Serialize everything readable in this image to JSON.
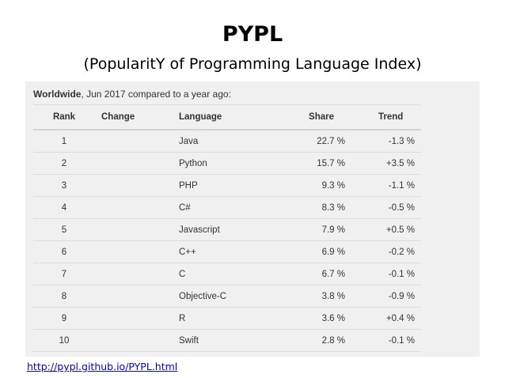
{
  "slide": {
    "title": "PYPL",
    "subtitle": "(PopularitY of Programming Language Index)",
    "source_link": "http://pypl.github.io/PYPL.html"
  },
  "ranking": {
    "caption_strong": "Worldwide",
    "caption_rest": ", Jun 2017 compared to a year ago:",
    "columns": [
      "Rank",
      "Change",
      "Language",
      "Share",
      "Trend"
    ],
    "rows": [
      {
        "rank": "1",
        "change": "",
        "language": "Java",
        "share": "22.7 %",
        "trend": "-1.3 %"
      },
      {
        "rank": "2",
        "change": "",
        "language": "Python",
        "share": "15.7 %",
        "trend": "+3.5 %"
      },
      {
        "rank": "3",
        "change": "",
        "language": "PHP",
        "share": "9.3 %",
        "trend": "-1.1 %"
      },
      {
        "rank": "4",
        "change": "",
        "language": "C#",
        "share": "8.3 %",
        "trend": "-0.5 %"
      },
      {
        "rank": "5",
        "change": "",
        "language": "Javascript",
        "share": "7.9 %",
        "trend": "+0.5 %"
      },
      {
        "rank": "6",
        "change": "",
        "language": "C++",
        "share": "6.9 %",
        "trend": "-0.2 %"
      },
      {
        "rank": "7",
        "change": "",
        "language": "C",
        "share": "6.7 %",
        "trend": "-0.1 %"
      },
      {
        "rank": "8",
        "change": "",
        "language": "Objective-C",
        "share": "3.8 %",
        "trend": "-0.9 %"
      },
      {
        "rank": "9",
        "change": "",
        "language": "R",
        "share": "3.6 %",
        "trend": "+0.4 %"
      },
      {
        "rank": "10",
        "change": "",
        "language": "Swift",
        "share": "2.8 %",
        "trend": "-0.1 %"
      }
    ]
  }
}
